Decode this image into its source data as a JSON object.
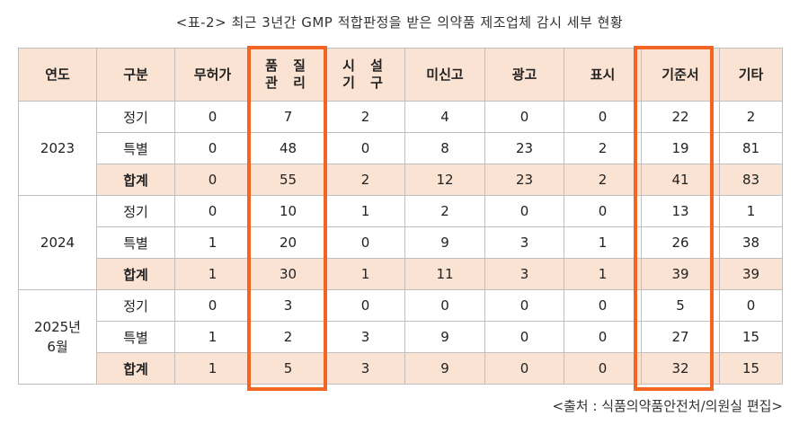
{
  "caption": "<표-2> 최근 3년간 GMP 적합판정을 받은 의약품 제조업체 감시 세부 현황",
  "headers": {
    "year": "연도",
    "kind": "구분",
    "c1": "무허가",
    "c2a": "품 질",
    "c2b": "관 리",
    "c3a": "시 설",
    "c3b": "기 구",
    "c4": "미신고",
    "c5": "광고",
    "c6": "표시",
    "c7": "기준서",
    "c8": "기타"
  },
  "groups": [
    {
      "year_line1": "2023",
      "year_line2": "",
      "rows": [
        {
          "kind": "정기",
          "values": [
            "0",
            "7",
            "2",
            "4",
            "0",
            "0",
            "22",
            "2"
          ]
        },
        {
          "kind": "특별",
          "values": [
            "0",
            "48",
            "0",
            "8",
            "23",
            "2",
            "19",
            "81"
          ]
        },
        {
          "kind": "합계",
          "values": [
            "0",
            "55",
            "2",
            "12",
            "23",
            "2",
            "41",
            "83"
          ]
        }
      ]
    },
    {
      "year_line1": "2024",
      "year_line2": "",
      "rows": [
        {
          "kind": "정기",
          "values": [
            "0",
            "10",
            "1",
            "2",
            "0",
            "0",
            "13",
            "1"
          ]
        },
        {
          "kind": "특별",
          "values": [
            "1",
            "20",
            "0",
            "9",
            "3",
            "1",
            "26",
            "38"
          ]
        },
        {
          "kind": "합계",
          "values": [
            "1",
            "30",
            "1",
            "11",
            "3",
            "1",
            "39",
            "39"
          ]
        }
      ]
    },
    {
      "year_line1": "2025년",
      "year_line2": "6월",
      "rows": [
        {
          "kind": "정기",
          "values": [
            "0",
            "3",
            "0",
            "0",
            "0",
            "0",
            "5",
            "0"
          ]
        },
        {
          "kind": "특별",
          "values": [
            "1",
            "2",
            "3",
            "9",
            "0",
            "0",
            "27",
            "15"
          ]
        },
        {
          "kind": "합계",
          "values": [
            "1",
            "5",
            "3",
            "9",
            "0",
            "0",
            "32",
            "15"
          ]
        }
      ]
    }
  ],
  "source": "<출처 : 식품의약품안전처/의원실 편집>",
  "colors": {
    "header_bg": "#fbe3d4",
    "highlight_border": "#f26522",
    "grid_line": "#bfbfbf"
  }
}
